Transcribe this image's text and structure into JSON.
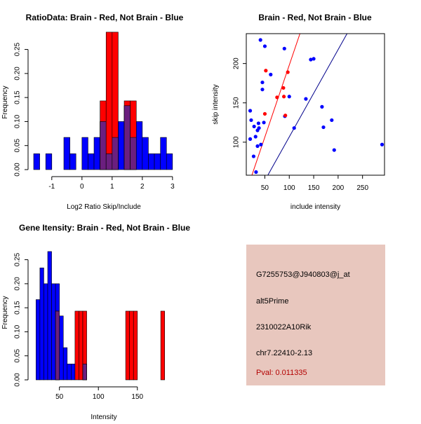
{
  "colors": {
    "brain": "#ff0000",
    "not_brain": "#0000ff",
    "overlap": "#6b1f7f",
    "brain_line": "#cc0000",
    "not_brain_line": "#00008b",
    "info_bg": "#e8c7be",
    "pval_text": "#b30000"
  },
  "chart_data": [
    {
      "id": "ratio",
      "type": "bar",
      "subtype": "histogram",
      "title": "RatioData: Brain - Red, Not Brain - Blue",
      "xlabel": "Log2 Ratio Skip/Include",
      "ylabel": "Frequency",
      "xlim": [
        -1.6,
        3.05
      ],
      "ylim": [
        0,
        0.28
      ],
      "xticks": [
        -1,
        0,
        1,
        2,
        3
      ],
      "xtick_labels": [
        "-1",
        "0",
        "1",
        "2",
        "3"
      ],
      "yticks": [
        0,
        0.05,
        0.1,
        0.15,
        0.2,
        0.25
      ],
      "ytick_labels": [
        "0.00",
        "0.05",
        "0.10",
        "0.15",
        "0.20",
        "0.25"
      ],
      "series": [
        {
          "name": "Not Brain",
          "color": "blue",
          "bins": [
            [
              -1.6,
              -1.4,
              0.033
            ],
            [
              -1.2,
              -1.0,
              0.033
            ],
            [
              -0.6,
              -0.4,
              0.067
            ],
            [
              -0.4,
              -0.2,
              0.033
            ],
            [
              0.0,
              0.2,
              0.067
            ],
            [
              0.2,
              0.4,
              0.033
            ],
            [
              0.4,
              0.6,
              0.067
            ],
            [
              0.6,
              0.8,
              0.1
            ],
            [
              0.8,
              1.0,
              0.033
            ],
            [
              1.0,
              1.2,
              0.067
            ],
            [
              1.2,
              1.4,
              0.1
            ],
            [
              1.4,
              1.6,
              0.133
            ],
            [
              1.6,
              1.8,
              0.067
            ],
            [
              1.8,
              2.0,
              0.1
            ],
            [
              2.0,
              2.2,
              0.067
            ],
            [
              2.2,
              2.4,
              0.033
            ],
            [
              2.4,
              2.6,
              0.033
            ],
            [
              2.6,
              2.8,
              0.067
            ],
            [
              2.8,
              3.0,
              0.033
            ]
          ]
        },
        {
          "name": "Brain",
          "color": "red",
          "bins": [
            [
              0.6,
              0.8,
              0.143
            ],
            [
              0.8,
              1.0,
              0.286
            ],
            [
              1.0,
              1.2,
              0.286
            ],
            [
              1.4,
              1.6,
              0.143
            ],
            [
              1.6,
              1.8,
              0.143
            ]
          ]
        }
      ]
    },
    {
      "id": "scatter",
      "type": "scatter",
      "title": "Brain - Red, Not Brain - Blue",
      "xlabel": "include intensity",
      "ylabel": "skip intensity",
      "xlim": [
        12,
        295
      ],
      "ylim": [
        58,
        238
      ],
      "xticks": [
        50,
        100,
        150,
        200,
        250
      ],
      "xtick_labels": [
        "50",
        "100",
        "150",
        "200",
        "250"
      ],
      "yticks": [
        100,
        150,
        200
      ],
      "ytick_labels": [
        "100",
        "150",
        "200"
      ],
      "series": [
        {
          "name": "Not Brain",
          "color": "blue",
          "points": [
            [
              20,
              104
            ],
            [
              20,
              140
            ],
            [
              22,
              128
            ],
            [
              27,
              82
            ],
            [
              28,
              120
            ],
            [
              31,
              107
            ],
            [
              32,
              62
            ],
            [
              35,
              95
            ],
            [
              35,
              115
            ],
            [
              37,
              124
            ],
            [
              38,
              118
            ],
            [
              41,
              230
            ],
            [
              42,
              97
            ],
            [
              45,
              176
            ],
            [
              45,
              167
            ],
            [
              48,
              125
            ],
            [
              50,
              222
            ],
            [
              62,
              186
            ],
            [
              90,
              219
            ],
            [
              91,
              133
            ],
            [
              100,
              158
            ],
            [
              110,
              118
            ],
            [
              134,
              155
            ],
            [
              144,
              205
            ],
            [
              150,
              206
            ],
            [
              167,
              145
            ],
            [
              170,
              119
            ],
            [
              187,
              128
            ],
            [
              192,
              90
            ],
            [
              290,
              97
            ]
          ]
        },
        {
          "name": "Brain",
          "color": "red",
          "points": [
            [
              50,
              136
            ],
            [
              52,
              191
            ],
            [
              75,
              157
            ],
            [
              88,
              169
            ],
            [
              89,
              158
            ],
            [
              92,
              134
            ],
            [
              97,
              189
            ]
          ]
        }
      ],
      "lines": [
        {
          "name": "Brain fit",
          "color": "red",
          "intercept": 15,
          "slope": 1.83
        },
        {
          "name": "Not Brain fit",
          "color": "navy",
          "intercept": -4.3,
          "slope": 1.11
        }
      ]
    },
    {
      "id": "gene",
      "type": "bar",
      "subtype": "histogram",
      "title": "Gene Itensity: Brain - Red, Not Brain - Blue",
      "xlabel": "Intensity",
      "ylabel": "Frequency",
      "xlim": [
        17,
        197
      ],
      "ylim": [
        0,
        0.28
      ],
      "xticks": [
        50,
        100,
        150
      ],
      "xtick_labels": [
        "50",
        "100",
        "150"
      ],
      "yticks": [
        0,
        0.05,
        0.1,
        0.15,
        0.2,
        0.25
      ],
      "ytick_labels": [
        "0.00",
        "0.05",
        "0.10",
        "0.15",
        "0.20",
        "0.25"
      ],
      "series": [
        {
          "name": "Not Brain",
          "color": "blue",
          "bins": [
            [
              20,
              25,
              0.167
            ],
            [
              25,
              30,
              0.233
            ],
            [
              30,
              35,
              0.2
            ],
            [
              35,
              40,
              0.267
            ],
            [
              40,
              45,
              0.2
            ],
            [
              45,
              50,
              0.2
            ],
            [
              50,
              55,
              0.133
            ],
            [
              55,
              60,
              0.067
            ],
            [
              60,
              65,
              0.033
            ],
            [
              65,
              70,
              0.033
            ],
            [
              80,
              85,
              0.033
            ]
          ]
        },
        {
          "name": "Brain",
          "color": "red",
          "bins": [
            [
              45,
              50,
              0.143
            ],
            [
              70,
              75,
              0.143
            ],
            [
              75,
              80,
              0.143
            ],
            [
              80,
              85,
              0.143
            ],
            [
              135,
              140,
              0.143
            ],
            [
              140,
              145,
              0.143
            ],
            [
              145,
              150,
              0.143
            ],
            [
              180,
              185,
              0.143
            ]
          ]
        }
      ]
    }
  ],
  "info_panel": {
    "probe_id": "G7255753@J940803@j_at",
    "event_type": "alt5Prime",
    "gene_name": "2310022A10Rik",
    "location": "chr7.22410-2.13",
    "pval": "Pval: 0.011335"
  }
}
